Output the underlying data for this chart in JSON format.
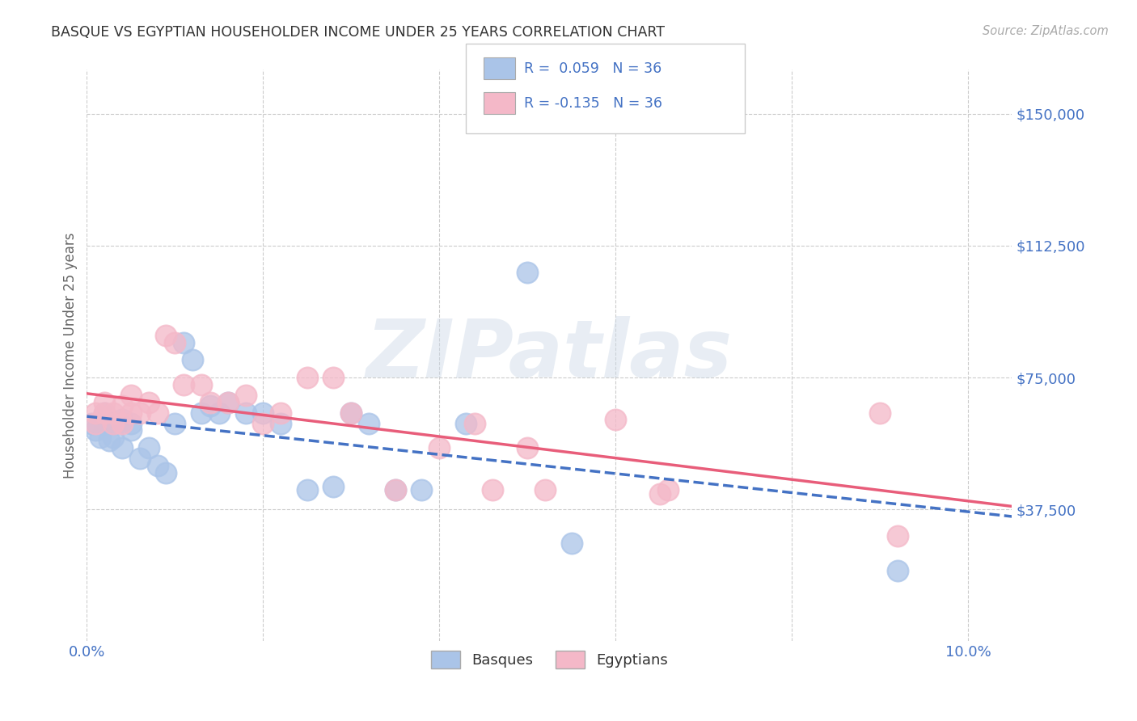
{
  "title": "BASQUE VS EGYPTIAN HOUSEHOLDER INCOME UNDER 25 YEARS CORRELATION CHART",
  "source": "Source: ZipAtlas.com",
  "ylabel": "Householder Income Under 25 years",
  "xlim": [
    0.0,
    0.105
  ],
  "ylim": [
    0,
    162500
  ],
  "yticks": [
    37500,
    75000,
    112500,
    150000
  ],
  "ytick_labels": [
    "$37,500",
    "$75,000",
    "$112,500",
    "$150,000"
  ],
  "background_color": "#ffffff",
  "grid_color": "#cccccc",
  "title_color": "#333333",
  "source_color": "#aaaaaa",
  "axis_label_color": "#4472c4",
  "basque_color": "#aac4e8",
  "egyptian_color": "#f4b8c8",
  "basque_line_color": "#4472c4",
  "egyptian_line_color": "#e85d7a",
  "watermark": "ZIPatlas",
  "legend_basque_label": "R =  0.059   N = 36",
  "legend_egyptian_label": "R = -0.135   N = 36",
  "bottom_legend_basque": "Basques",
  "bottom_legend_egyptian": "Egyptians",
  "basque_x": [
    0.0005,
    0.001,
    0.0015,
    0.002,
    0.002,
    0.0025,
    0.003,
    0.003,
    0.004,
    0.004,
    0.005,
    0.005,
    0.006,
    0.007,
    0.008,
    0.009,
    0.01,
    0.011,
    0.012,
    0.013,
    0.014,
    0.015,
    0.016,
    0.018,
    0.02,
    0.022,
    0.025,
    0.028,
    0.03,
    0.032,
    0.035,
    0.038,
    0.043,
    0.05,
    0.055,
    0.092
  ],
  "basque_y": [
    62000,
    60000,
    58000,
    65000,
    62000,
    57000,
    62000,
    58000,
    63000,
    55000,
    62000,
    60000,
    52000,
    55000,
    50000,
    48000,
    62000,
    85000,
    80000,
    65000,
    67000,
    65000,
    68000,
    65000,
    65000,
    62000,
    43000,
    44000,
    65000,
    62000,
    43000,
    43000,
    62000,
    105000,
    28000,
    20000
  ],
  "egyptian_x": [
    0.001,
    0.001,
    0.002,
    0.002,
    0.003,
    0.003,
    0.004,
    0.004,
    0.005,
    0.005,
    0.006,
    0.007,
    0.008,
    0.009,
    0.01,
    0.011,
    0.013,
    0.014,
    0.016,
    0.018,
    0.02,
    0.022,
    0.025,
    0.028,
    0.03,
    0.035,
    0.04,
    0.044,
    0.046,
    0.05,
    0.052,
    0.06,
    0.065,
    0.066,
    0.09,
    0.092
  ],
  "egyptian_y": [
    62000,
    65000,
    65000,
    68000,
    65000,
    62000,
    67000,
    62000,
    70000,
    65000,
    65000,
    68000,
    65000,
    87000,
    85000,
    73000,
    73000,
    68000,
    68000,
    70000,
    62000,
    65000,
    75000,
    75000,
    65000,
    43000,
    55000,
    62000,
    43000,
    55000,
    43000,
    63000,
    42000,
    43000,
    65000,
    30000
  ]
}
